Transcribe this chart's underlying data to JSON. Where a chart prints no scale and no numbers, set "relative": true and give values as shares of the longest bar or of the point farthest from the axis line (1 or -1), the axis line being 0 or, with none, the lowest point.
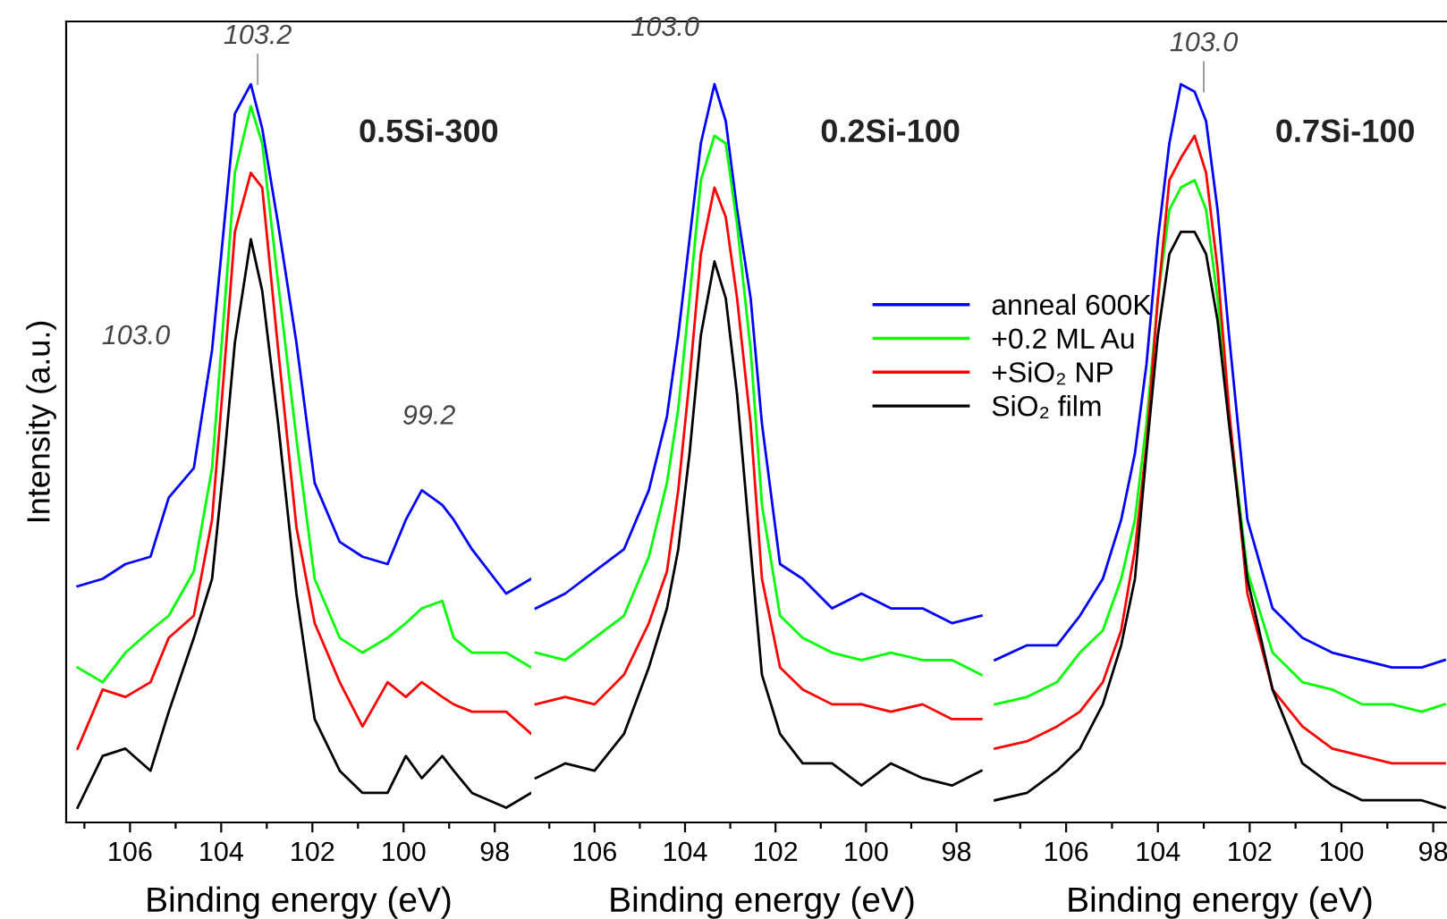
{
  "chart_data": [
    {
      "type": "line",
      "title": "0.5Si-300",
      "xlabel": "Binding energy (eV)",
      "ylabel": "Intensity (a.u.)",
      "relative": true,
      "xlim": [
        107.4,
        97.2
      ],
      "xticks": [
        {
          "value": 107,
          "label": null
        },
        106,
        {
          "value": 105,
          "label": null
        },
        104,
        {
          "value": 103,
          "label": null
        },
        102,
        {
          "value": 101,
          "label": null
        },
        100,
        {
          "value": 99,
          "label": null
        },
        98
      ],
      "x": [
        107.15,
        106.6,
        106.1,
        105.55,
        105.15,
        104.6,
        104.2,
        103.95,
        103.7,
        103.35,
        103.1,
        102.75,
        102.35,
        101.95,
        101.4,
        100.9,
        100.35,
        99.95,
        99.6,
        99.15,
        98.9,
        98.5,
        97.75,
        97.2
      ],
      "series": [
        {
          "color": "#0000ff",
          "values": [
            0.32,
            0.33,
            0.35,
            0.36,
            0.44,
            0.48,
            0.64,
            0.8,
            0.96,
            1.0,
            0.94,
            0.81,
            0.65,
            0.46,
            0.38,
            0.36,
            0.35,
            0.41,
            0.45,
            0.43,
            0.41,
            0.37,
            0.31,
            0.33
          ]
        },
        {
          "color": "#00ff00",
          "values": [
            0.21,
            0.19,
            0.23,
            0.26,
            0.28,
            0.34,
            0.48,
            0.68,
            0.88,
            0.97,
            0.92,
            0.73,
            0.52,
            0.33,
            0.25,
            0.23,
            0.25,
            0.27,
            0.29,
            0.3,
            0.25,
            0.23,
            0.23,
            0.21
          ]
        },
        {
          "color": "#ff0000",
          "values": [
            0.1,
            0.18,
            0.17,
            0.19,
            0.25,
            0.28,
            0.41,
            0.6,
            0.8,
            0.88,
            0.86,
            0.64,
            0.4,
            0.27,
            0.19,
            0.13,
            0.19,
            0.17,
            0.19,
            0.17,
            0.16,
            0.15,
            0.15,
            0.12
          ]
        },
        {
          "color": "#000000",
          "values": [
            0.02,
            0.09,
            0.1,
            0.07,
            0.15,
            0.25,
            0.33,
            0.48,
            0.65,
            0.79,
            0.72,
            0.54,
            0.31,
            0.14,
            0.07,
            0.04,
            0.04,
            0.09,
            0.06,
            0.09,
            0.07,
            0.04,
            0.02,
            0.04
          ]
        }
      ],
      "annotations": [
        {
          "text": "103.2",
          "x": 103.2,
          "y": 1.0
        },
        "103.0",
        "99.2"
      ]
    },
    {
      "type": "line",
      "title": "0.2Si-100",
      "xlabel": "Binding energy (eV)",
      "relative": true,
      "xlim": [
        107.4,
        97.2
      ],
      "legend": "right",
      "xticks": [
        {
          "value": 107,
          "label": null
        },
        106,
        {
          "value": 105,
          "label": null
        },
        104,
        {
          "value": 103,
          "label": null
        },
        102,
        {
          "value": 101,
          "label": null
        },
        100,
        {
          "value": 99,
          "label": null
        },
        98
      ],
      "x": [
        107.3,
        106.65,
        106.0,
        105.35,
        104.8,
        104.4,
        104.15,
        103.9,
        103.65,
        103.35,
        103.1,
        102.85,
        102.55,
        102.3,
        101.9,
        101.4,
        100.75,
        100.1,
        99.45,
        98.75,
        98.1,
        97.45
      ],
      "series": [
        {
          "name": "anneal 600K",
          "color": "#0000ff",
          "values": [
            0.29,
            0.31,
            0.34,
            0.37,
            0.45,
            0.55,
            0.66,
            0.79,
            0.92,
            1.0,
            0.95,
            0.83,
            0.71,
            0.54,
            0.35,
            0.33,
            0.29,
            0.31,
            0.29,
            0.29,
            0.27,
            0.28
          ]
        },
        {
          "name": "+0.2 ML Au",
          "color": "#00ff00",
          "values": [
            0.23,
            0.22,
            0.25,
            0.28,
            0.36,
            0.46,
            0.56,
            0.71,
            0.87,
            0.93,
            0.92,
            0.81,
            0.64,
            0.43,
            0.28,
            0.25,
            0.23,
            0.22,
            0.23,
            0.22,
            0.22,
            0.2
          ]
        },
        {
          "name": "+SiO₂ NP",
          "color": "#ff0000",
          "values": [
            0.16,
            0.17,
            0.16,
            0.2,
            0.27,
            0.34,
            0.45,
            0.6,
            0.77,
            0.86,
            0.82,
            0.71,
            0.54,
            0.33,
            0.21,
            0.18,
            0.16,
            0.16,
            0.15,
            0.16,
            0.14,
            0.14
          ]
        },
        {
          "name": "SiO₂ film",
          "color": "#000000",
          "values": [
            0.06,
            0.08,
            0.07,
            0.12,
            0.21,
            0.29,
            0.37,
            0.5,
            0.66,
            0.76,
            0.71,
            0.58,
            0.37,
            0.2,
            0.12,
            0.08,
            0.08,
            0.05,
            0.08,
            0.06,
            0.05,
            0.07
          ]
        }
      ],
      "annotations": [
        "103.0"
      ]
    },
    {
      "type": "line",
      "title": "0.7Si-100",
      "xlabel": "Binding energy (eV)",
      "relative": true,
      "xlim": [
        107.6,
        97.7
      ],
      "xticks": [
        {
          "value": 107,
          "label": null
        },
        106,
        {
          "value": 105,
          "label": null
        },
        104,
        {
          "value": 103,
          "label": null
        },
        102,
        {
          "value": 101,
          "label": null
        },
        100,
        {
          "value": 99,
          "label": null
        },
        98
      ],
      "x": [
        107.55,
        106.85,
        106.2,
        105.7,
        105.2,
        104.8,
        104.5,
        104.25,
        104.0,
        103.75,
        103.5,
        103.2,
        102.95,
        102.7,
        102.45,
        102.05,
        101.5,
        100.85,
        100.2,
        99.55,
        98.9,
        98.25,
        97.75
      ],
      "series": [
        {
          "color": "#0000ff",
          "values": [
            0.22,
            0.24,
            0.24,
            0.28,
            0.33,
            0.41,
            0.5,
            0.62,
            0.79,
            0.92,
            1.0,
            0.99,
            0.95,
            0.83,
            0.66,
            0.41,
            0.29,
            0.25,
            0.23,
            0.22,
            0.21,
            0.21,
            0.22
          ]
        },
        {
          "color": "#00ff00",
          "values": [
            0.16,
            0.17,
            0.19,
            0.23,
            0.26,
            0.33,
            0.41,
            0.54,
            0.71,
            0.83,
            0.86,
            0.87,
            0.83,
            0.71,
            0.55,
            0.34,
            0.23,
            0.19,
            0.18,
            0.16,
            0.16,
            0.15,
            0.16
          ]
        },
        {
          "color": "#ff0000",
          "values": [
            0.1,
            0.11,
            0.13,
            0.15,
            0.19,
            0.26,
            0.37,
            0.51,
            0.71,
            0.87,
            0.9,
            0.93,
            0.88,
            0.75,
            0.56,
            0.31,
            0.18,
            0.13,
            0.1,
            0.09,
            0.08,
            0.08,
            0.08
          ]
        },
        {
          "color": "#000000",
          "values": [
            0.03,
            0.04,
            0.07,
            0.1,
            0.16,
            0.24,
            0.33,
            0.5,
            0.66,
            0.77,
            0.8,
            0.8,
            0.77,
            0.68,
            0.54,
            0.33,
            0.18,
            0.08,
            0.05,
            0.03,
            0.03,
            0.03,
            0.02
          ]
        }
      ],
      "annotations": [
        {
          "text": "103.0",
          "x": 103.0,
          "y": 0.99
        }
      ]
    }
  ]
}
